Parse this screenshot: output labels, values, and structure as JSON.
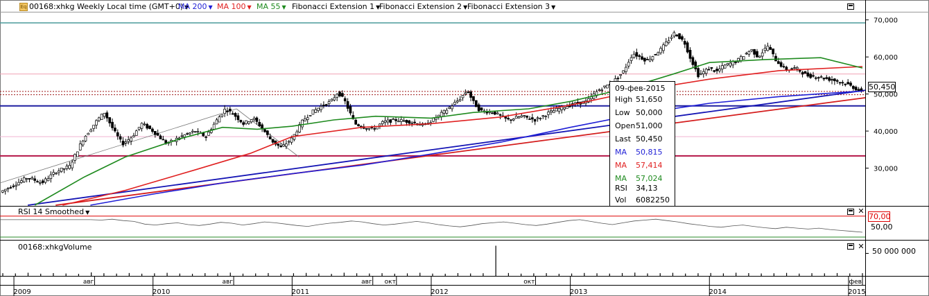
{
  "header": {
    "symbol_title": "00168:xhkg Weekly Local time (GMT+0)",
    "indicators": [
      {
        "label": "MA 200",
        "color": "#1f1fd6"
      },
      {
        "label": "MA 100",
        "color": "#e02020"
      },
      {
        "label": "MA 55",
        "color": "#1e8a1e"
      },
      {
        "label": "Fibonacci Extension 1",
        "color": "#000000"
      },
      {
        "label": "Fibonacci Extension 2",
        "color": "#000000"
      },
      {
        "label": "Fibonacci Extension 3",
        "color": "#000000"
      }
    ]
  },
  "tooltip": {
    "date": "09-фев-2015",
    "rows": [
      {
        "label": "High",
        "value": "51,650",
        "color": "#000000"
      },
      {
        "label": "Low",
        "value": "50,000",
        "color": "#000000"
      },
      {
        "label": "Open",
        "value": "51,000",
        "color": "#000000"
      },
      {
        "label": "Last",
        "value": "50,450",
        "color": "#000000"
      },
      {
        "label": "MA",
        "value": "50,815",
        "color": "#1f1fd6"
      },
      {
        "label": "MA",
        "value": "57,414",
        "color": "#e02020"
      },
      {
        "label": "MA",
        "value": "57,024",
        "color": "#1e8a1e"
      },
      {
        "label": "RSI",
        "value": "34,13",
        "color": "#000000"
      },
      {
        "label": "Vol",
        "value": "6082250",
        "color": "#000000"
      }
    ]
  },
  "price_label": "50,450",
  "rsi_panel": {
    "label": "RSI 14 Smoothed",
    "level_label": "70,00",
    "mid_label": "50,00"
  },
  "volume_panel": {
    "label": "00168:xhkgVolume",
    "axis_label": "50 000 000"
  },
  "chart_data": {
    "type": "candlestick",
    "title": "00168:xhkg Weekly",
    "price_axis": {
      "ylim": [
        20000,
        72000
      ],
      "ticks": [
        "70,000",
        "60,000",
        "50,000",
        "40,000",
        "30,000"
      ]
    },
    "time_axis": {
      "xlim": [
        2008.9,
        2015.12
      ],
      "years": [
        {
          "x": 2009.0,
          "label": "2009"
        },
        {
          "x": 2010.0,
          "label": "2010"
        },
        {
          "x": 2011.0,
          "label": "2011"
        },
        {
          "x": 2012.0,
          "label": "2012"
        },
        {
          "x": 2013.0,
          "label": "2013"
        },
        {
          "x": 2014.0,
          "label": "2014"
        },
        {
          "x": 2015.0,
          "label": "2015"
        }
      ],
      "months": [
        {
          "x": 2009.58,
          "label": "авг"
        },
        {
          "x": 2010.58,
          "label": "авг"
        },
        {
          "x": 2011.58,
          "label": "авг"
        },
        {
          "x": 2011.75,
          "label": "окт"
        },
        {
          "x": 2012.75,
          "label": "окт"
        },
        {
          "x": 2015.1,
          "label": "фев"
        }
      ]
    },
    "price_path": [
      [
        2008.9,
        23500
      ],
      [
        2009.1,
        27500
      ],
      [
        2009.2,
        26000
      ],
      [
        2009.3,
        29000
      ],
      [
        2009.4,
        30500
      ],
      [
        2009.5,
        38000
      ],
      [
        2009.6,
        43000
      ],
      [
        2009.65,
        45000
      ],
      [
        2009.72,
        40000
      ],
      [
        2009.78,
        36500
      ],
      [
        2009.85,
        38500
      ],
      [
        2009.92,
        42000
      ],
      [
        2010.0,
        40000
      ],
      [
        2010.1,
        36500
      ],
      [
        2010.2,
        38500
      ],
      [
        2010.3,
        40000
      ],
      [
        2010.38,
        38500
      ],
      [
        2010.45,
        42500
      ],
      [
        2010.52,
        46000
      ],
      [
        2010.58,
        44500
      ],
      [
        2010.65,
        42000
      ],
      [
        2010.72,
        43500
      ],
      [
        2010.78,
        41000
      ],
      [
        2010.85,
        37500
      ],
      [
        2010.92,
        35500
      ],
      [
        2011.0,
        38000
      ],
      [
        2011.08,
        43000
      ],
      [
        2011.14,
        45000
      ],
      [
        2011.2,
        46500
      ],
      [
        2011.28,
        48000
      ],
      [
        2011.33,
        50500
      ],
      [
        2011.38,
        48000
      ],
      [
        2011.45,
        42000
      ],
      [
        2011.52,
        41000
      ],
      [
        2011.58,
        40500
      ],
      [
        2011.66,
        42500
      ],
      [
        2011.75,
        43000
      ],
      [
        2011.85,
        42500
      ],
      [
        2011.95,
        41500
      ],
      [
        2012.05,
        44000
      ],
      [
        2012.12,
        46000
      ],
      [
        2012.2,
        48500
      ],
      [
        2012.26,
        51000
      ],
      [
        2012.3,
        48000
      ],
      [
        2012.35,
        45500
      ],
      [
        2012.45,
        45000
      ],
      [
        2012.55,
        43000
      ],
      [
        2012.65,
        44000
      ],
      [
        2012.75,
        43000
      ],
      [
        2012.85,
        45000
      ],
      [
        2012.95,
        46500
      ],
      [
        2013.05,
        47500
      ],
      [
        2013.12,
        48000
      ],
      [
        2013.2,
        51000
      ],
      [
        2013.3,
        53000
      ],
      [
        2013.38,
        56000
      ],
      [
        2013.45,
        61000
      ],
      [
        2013.55,
        59000
      ],
      [
        2013.65,
        62000
      ],
      [
        2013.75,
        66500
      ],
      [
        2013.82,
        64000
      ],
      [
        2013.86,
        60000
      ],
      [
        2013.92,
        55000
      ],
      [
        2014.0,
        57000
      ],
      [
        2014.05,
        56000
      ],
      [
        2014.1,
        57500
      ],
      [
        2014.2,
        59000
      ],
      [
        2014.3,
        62000
      ],
      [
        2014.35,
        60000
      ],
      [
        2014.42,
        63000
      ],
      [
        2014.48,
        59000
      ],
      [
        2014.55,
        56500
      ],
      [
        2014.62,
        57000
      ],
      [
        2014.7,
        55000
      ],
      [
        2014.8,
        54500
      ],
      [
        2014.92,
        53500
      ],
      [
        2015.0,
        52500
      ],
      [
        2015.1,
        50450
      ]
    ],
    "series": [
      {
        "name": "MA 200",
        "color": "#1f1fd6",
        "points": [
          [
            2009.55,
            20000
          ],
          [
            2010.0,
            23000
          ],
          [
            2010.5,
            26000
          ],
          [
            2011.0,
            28500
          ],
          [
            2011.5,
            30800
          ],
          [
            2012.0,
            33800
          ],
          [
            2012.5,
            37000
          ],
          [
            2013.0,
            41000
          ],
          [
            2013.5,
            44700
          ],
          [
            2014.0,
            47500
          ],
          [
            2014.5,
            49300
          ],
          [
            2015.1,
            50815
          ]
        ]
      },
      {
        "name": "MA 100",
        "color": "#e02020",
        "points": [
          [
            2009.35,
            20000
          ],
          [
            2009.8,
            24000
          ],
          [
            2010.3,
            29500
          ],
          [
            2010.7,
            34000
          ],
          [
            2011.0,
            38500
          ],
          [
            2011.5,
            41000
          ],
          [
            2012.0,
            42000
          ],
          [
            2012.5,
            43800
          ],
          [
            2013.0,
            47000
          ],
          [
            2013.5,
            51000
          ],
          [
            2014.0,
            54000
          ],
          [
            2014.5,
            56300
          ],
          [
            2015.1,
            57414
          ]
        ]
      },
      {
        "name": "MA 55",
        "color": "#1e8a1e",
        "points": [
          [
            2009.15,
            20000
          ],
          [
            2009.5,
            27500
          ],
          [
            2009.8,
            33000
          ],
          [
            2010.2,
            38000
          ],
          [
            2010.5,
            41000
          ],
          [
            2010.75,
            40500
          ],
          [
            2011.0,
            41300
          ],
          [
            2011.3,
            43000
          ],
          [
            2011.6,
            44000
          ],
          [
            2012.0,
            43500
          ],
          [
            2012.3,
            45000
          ],
          [
            2012.7,
            46000
          ],
          [
            2013.0,
            48000
          ],
          [
            2013.4,
            51500
          ],
          [
            2013.75,
            55500
          ],
          [
            2014.0,
            58500
          ],
          [
            2014.4,
            59300
          ],
          [
            2014.8,
            59800
          ],
          [
            2015.1,
            57024
          ]
        ]
      }
    ],
    "trend_lines": [
      {
        "color": "#d41c1c",
        "from": [
          2009.3,
          20000
        ],
        "to": [
          2015.12,
          49000
        ]
      },
      {
        "color": "#1414b4",
        "from": [
          2009.1,
          20000
        ],
        "to": [
          2015.12,
          51000
        ]
      },
      {
        "color": "#777777",
        "from": [
          2008.9,
          26000
        ],
        "to": [
          2010.6,
          46000
        ]
      },
      {
        "color": "#777777",
        "from": [
          2010.6,
          46000
        ],
        "to": [
          2011.05,
          33000
        ]
      }
    ],
    "horizontal_levels": [
      {
        "value": 69200,
        "color": "#4a9a9a",
        "width": 1.5
      },
      {
        "value": 55400,
        "color": "#f0a0b4",
        "width": 1
      },
      {
        "value": 50700,
        "color": "#a01818",
        "width": 1,
        "dash": "2,2"
      },
      {
        "value": 49800,
        "color": "#a01818",
        "width": 1,
        "dash": "2,2"
      },
      {
        "value": 46800,
        "color": "#1e1ea0",
        "width": 2
      },
      {
        "value": 38500,
        "color": "#f0b4d2",
        "width": 1
      },
      {
        "value": 33300,
        "color": "#b41446",
        "width": 2
      }
    ],
    "rsi": {
      "ylim": [
        20,
        85
      ],
      "level": 70,
      "values": [
        62,
        61,
        63,
        60,
        58,
        52,
        50,
        53,
        55,
        51,
        49,
        52,
        56,
        54,
        50,
        53,
        57,
        55,
        52,
        49,
        47,
        51,
        54,
        56,
        59,
        57,
        53,
        50,
        52,
        55,
        58,
        55,
        51,
        48,
        46,
        49,
        53,
        55,
        57,
        54,
        51,
        49,
        52,
        56,
        60,
        62,
        58,
        54,
        51,
        55,
        59,
        61,
        63,
        60,
        57,
        53,
        50,
        47,
        45,
        48,
        50,
        47,
        44,
        42,
        45,
        43,
        41,
        43,
        40,
        38,
        36,
        34
      ]
    },
    "volume": {
      "ylim": [
        0,
        80000000
      ],
      "values": [
        6000000,
        5500000,
        7000000,
        4800000,
        6200000,
        5300000,
        4600000,
        7800000,
        5900000,
        5100000,
        6400000,
        4900000,
        5700000,
        6800000,
        5200000,
        4700000,
        6100000,
        5600000,
        7200000,
        5000000,
        5500000,
        6300000,
        4800000,
        5900000,
        6600000,
        5200000,
        4500000,
        7100000,
        5800000,
        5300000,
        6000000,
        4900000,
        5600000,
        6900000,
        5100000,
        4800000,
        6200000,
        5400000,
        5900000,
        67000000,
        6400000,
        5000000,
        5700000,
        6100000,
        4700000,
        5300000,
        6500000,
        5800000,
        5100000,
        6300000,
        7300000,
        5500000,
        6000000,
        6800000,
        5200000,
        5900000,
        6400000,
        5600000,
        7000000,
        6200000,
        5400000,
        5800000,
        6600000,
        5100000,
        6000000,
        5700000,
        6300000,
        5500000,
        6082250
      ]
    }
  }
}
